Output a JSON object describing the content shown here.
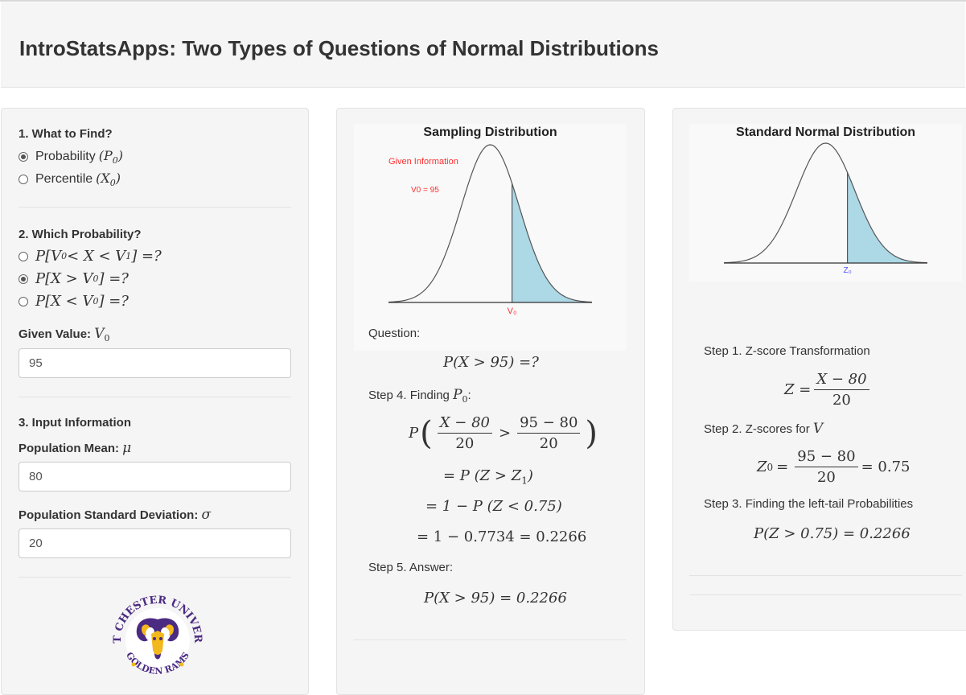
{
  "header": {
    "title": "IntroStatsApps: Two Types of Questions of Normal Distributions"
  },
  "sidebar": {
    "q1_label": "1. What to Find?",
    "find_options": [
      {
        "text": "Probability ",
        "sym": "(P",
        "sub": "0",
        "close": ")",
        "selected": true
      },
      {
        "text": "Percentile ",
        "sym": "(X",
        "sub": "0",
        "close": ")",
        "selected": false
      }
    ],
    "q2_label": "2. Which Probability?",
    "prob_options": [
      {
        "expr": "P[V",
        "sub": "0",
        "rest": " < X < V",
        "sub2": "1",
        "end": "] =?",
        "selected": false
      },
      {
        "expr": "P[X > V",
        "sub": "0",
        "end": "] =?",
        "selected": true
      },
      {
        "expr": "P[X < V",
        "sub": "0",
        "end": "] =?",
        "selected": false
      }
    ],
    "given_label": "Given Value: ",
    "given_sym": "V",
    "given_sub": "0",
    "given_value": "95",
    "q3_label": "3. Input Information",
    "mean_label": "Population Mean: ",
    "mean_sym": "μ",
    "mean_value": "80",
    "sd_label": "Population Standard Deviation: ",
    "sd_sym": "σ",
    "sd_value": "20",
    "logo": {
      "top_text": "WEST CHESTER UNIVERSITY",
      "bottom_text": "GOLDEN RAMS",
      "purple": "#4b2a82",
      "gold": "#f2b81c"
    }
  },
  "middle": {
    "title": "Sampling Distribution",
    "given_info": "Given Information",
    "v0_note": "V0 =  95",
    "axis_label": "V₀",
    "question_label": "Question:",
    "question_expr": "P(X > 95) =?",
    "step4_label": "Step 4. Finding ",
    "step4_sym": "P",
    "step4_sub": "0",
    "step4_suffix": ":",
    "frac_num1": "X − 80",
    "frac_den1": "20",
    "frac_num2": "95 − 80",
    "frac_den2": "20",
    "line2": "= P (Z > Z",
    "line2_sub": "1",
    "line2_end": ")",
    "line3": "= 1 − P (Z < 0.75)",
    "line4": "= 1 − 0.7734 = 0.2266",
    "step5_label": "Step 5. Answer:",
    "answer": "P(X > 95) = 0.2266"
  },
  "right": {
    "title": "Standard Normal Distribution",
    "axis_label": "Z₀",
    "step1": "Step 1. Z-score Transformation",
    "z_lhs": "Z =",
    "z_num": "X − 80",
    "z_den": "20",
    "step2": "Step 2. Z-scores for ",
    "step2_sym": "V",
    "z0_lhs": "Z",
    "z0_sub": "0",
    "z0_eq": "=",
    "z0_num": "95 − 80",
    "z0_den": "20",
    "z0_result": "= 0.75",
    "step3": "Step 3. Finding the left-tail Probabilities",
    "step3_result": "P(Z > 0.75) = 0.2266"
  },
  "colors": {
    "shade": "#add8e6",
    "red_text": "#ff3030",
    "blue_label": "#5555ff"
  }
}
